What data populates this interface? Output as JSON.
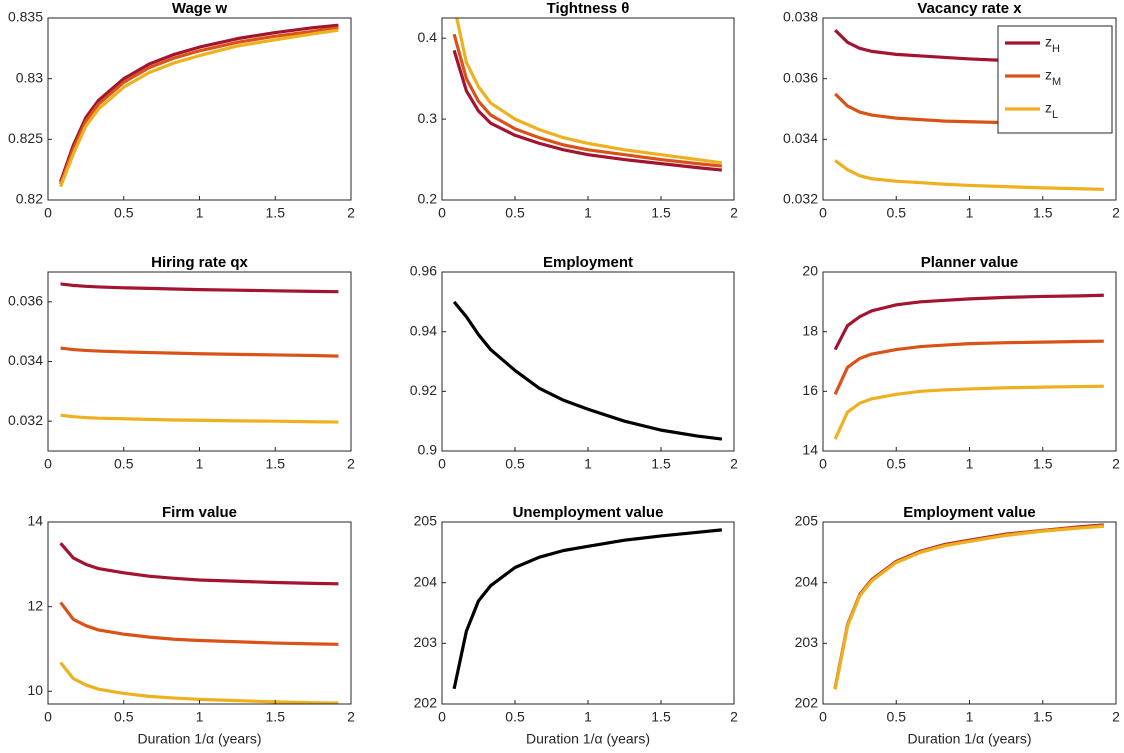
{
  "chart_data": [
    {
      "type": "line",
      "title": "Wage w",
      "x": [
        0.083,
        0.167,
        0.25,
        0.333,
        0.5,
        0.667,
        0.833,
        1,
        1.25,
        1.5,
        1.75,
        1.917
      ],
      "xlim": [
        0,
        2
      ],
      "xticks": [
        0,
        0.5,
        1,
        1.5,
        2
      ],
      "ylim": [
        0.82,
        0.835
      ],
      "yticks": [
        0.82,
        0.825,
        0.83,
        0.835
      ],
      "series": [
        {
          "name": "zH",
          "color": "#a2142f",
          "values": [
            0.8215,
            0.8245,
            0.8268,
            0.8282,
            0.83,
            0.8312,
            0.832,
            0.8326,
            0.8333,
            0.8338,
            0.8342,
            0.8344
          ]
        },
        {
          "name": "zM",
          "color": "#d95319",
          "values": [
            0.8213,
            0.8242,
            0.8265,
            0.8279,
            0.8297,
            0.8309,
            0.8317,
            0.8323,
            0.833,
            0.8335,
            0.8339,
            0.8342
          ]
        },
        {
          "name": "zL",
          "color": "#edb120",
          "values": [
            0.8211,
            0.8238,
            0.8261,
            0.8275,
            0.8293,
            0.8305,
            0.8313,
            0.8319,
            0.8327,
            0.8332,
            0.8337,
            0.834
          ]
        }
      ]
    },
    {
      "type": "line",
      "title": "Tightness θ",
      "x": [
        0.083,
        0.167,
        0.25,
        0.333,
        0.5,
        0.667,
        0.833,
        1,
        1.25,
        1.5,
        1.75,
        1.917
      ],
      "xlim": [
        0,
        2
      ],
      "xticks": [
        0,
        0.5,
        1,
        1.5,
        2
      ],
      "ylim": [
        0.2,
        0.425
      ],
      "yticks": [
        0.2,
        0.3,
        0.4
      ],
      "series": [
        {
          "name": "zH",
          "color": "#a2142f",
          "values": [
            0.385,
            0.335,
            0.31,
            0.295,
            0.28,
            0.27,
            0.262,
            0.256,
            0.25,
            0.245,
            0.24,
            0.237
          ]
        },
        {
          "name": "zM",
          "color": "#d95319",
          "values": [
            0.405,
            0.35,
            0.322,
            0.305,
            0.288,
            0.277,
            0.268,
            0.262,
            0.256,
            0.25,
            0.245,
            0.242
          ]
        },
        {
          "name": "zL",
          "color": "#edb120",
          "values": [
            0.44,
            0.37,
            0.34,
            0.32,
            0.3,
            0.287,
            0.277,
            0.27,
            0.262,
            0.256,
            0.25,
            0.246
          ]
        }
      ]
    },
    {
      "type": "line",
      "title": "Vacancy rate x",
      "x": [
        0.083,
        0.167,
        0.25,
        0.333,
        0.5,
        0.667,
        0.833,
        1,
        1.25,
        1.5,
        1.75,
        1.917
      ],
      "xlim": [
        0,
        2
      ],
      "xticks": [
        0,
        0.5,
        1,
        1.5,
        2
      ],
      "ylim": [
        0.032,
        0.038
      ],
      "yticks": [
        0.032,
        0.034,
        0.036,
        0.038
      ],
      "legend": "northeast",
      "series": [
        {
          "name": "zH",
          "color": "#a2142f",
          "values": [
            0.0376,
            0.0372,
            0.037,
            0.0369,
            0.0368,
            0.03675,
            0.0367,
            0.03665,
            0.0366,
            0.03657,
            0.03655,
            0.03653
          ]
        },
        {
          "name": "zM",
          "color": "#d95319",
          "values": [
            0.0355,
            0.0351,
            0.0349,
            0.0348,
            0.0347,
            0.03465,
            0.0346,
            0.03458,
            0.03455,
            0.0345,
            0.03448,
            0.03446
          ]
        },
        {
          "name": "zL",
          "color": "#edb120",
          "values": [
            0.0333,
            0.033,
            0.0328,
            0.0327,
            0.03262,
            0.03257,
            0.03252,
            0.03248,
            0.03244,
            0.0324,
            0.03237,
            0.03235
          ]
        }
      ]
    },
    {
      "type": "line",
      "title": "Hiring rate qx",
      "x": [
        0.083,
        0.167,
        0.25,
        0.333,
        0.5,
        0.667,
        0.833,
        1,
        1.25,
        1.5,
        1.75,
        1.917
      ],
      "xlim": [
        0,
        2
      ],
      "xticks": [
        0,
        0.5,
        1,
        1.5,
        2
      ],
      "ylim": [
        0.031,
        0.037
      ],
      "yticks": [
        0.032,
        0.034,
        0.036
      ],
      "series": [
        {
          "name": "zH",
          "color": "#a2142f",
          "values": [
            0.0366,
            0.03655,
            0.03652,
            0.0365,
            0.03647,
            0.03645,
            0.03643,
            0.03641,
            0.03639,
            0.03637,
            0.03635,
            0.03634
          ]
        },
        {
          "name": "zM",
          "color": "#d95319",
          "values": [
            0.03445,
            0.0344,
            0.03437,
            0.03435,
            0.03432,
            0.0343,
            0.03428,
            0.03426,
            0.03424,
            0.03422,
            0.0342,
            0.03418
          ]
        },
        {
          "name": "zL",
          "color": "#edb120",
          "values": [
            0.0322,
            0.03215,
            0.03212,
            0.0321,
            0.03208,
            0.03206,
            0.03204,
            0.03203,
            0.03201,
            0.032,
            0.03198,
            0.03197
          ]
        }
      ]
    },
    {
      "type": "line",
      "title": "Employment",
      "x": [
        0.083,
        0.167,
        0.25,
        0.333,
        0.5,
        0.667,
        0.833,
        1,
        1.25,
        1.5,
        1.75,
        1.917
      ],
      "xlim": [
        0,
        2
      ],
      "xticks": [
        0,
        0.5,
        1,
        1.5,
        2
      ],
      "ylim": [
        0.9,
        0.96
      ],
      "yticks": [
        0.9,
        0.92,
        0.94,
        0.96
      ],
      "series": [
        {
          "color": "#000000",
          "values": [
            0.95,
            0.945,
            0.939,
            0.934,
            0.927,
            0.921,
            0.917,
            0.914,
            0.91,
            0.907,
            0.905,
            0.904
          ]
        }
      ]
    },
    {
      "type": "line",
      "title": "Planner value",
      "x": [
        0.083,
        0.167,
        0.25,
        0.333,
        0.5,
        0.667,
        0.833,
        1,
        1.25,
        1.5,
        1.75,
        1.917
      ],
      "xlim": [
        0,
        2
      ],
      "xticks": [
        0,
        0.5,
        1,
        1.5,
        2
      ],
      "ylim": [
        14,
        20
      ],
      "yticks": [
        14,
        16,
        18,
        20
      ],
      "series": [
        {
          "name": "zH",
          "color": "#a2142f",
          "values": [
            17.4,
            18.2,
            18.5,
            18.7,
            18.9,
            19,
            19.05,
            19.1,
            19.15,
            19.18,
            19.2,
            19.22
          ]
        },
        {
          "name": "zM",
          "color": "#d95319",
          "values": [
            15.9,
            16.8,
            17.1,
            17.25,
            17.4,
            17.5,
            17.55,
            17.6,
            17.63,
            17.65,
            17.67,
            17.68
          ]
        },
        {
          "name": "zL",
          "color": "#edb120",
          "values": [
            14.4,
            15.3,
            15.6,
            15.75,
            15.9,
            16,
            16.05,
            16.08,
            16.12,
            16.14,
            16.16,
            16.17
          ]
        }
      ]
    },
    {
      "type": "line",
      "title": "Firm value",
      "xlabel": "Duration 1/α (years)",
      "x": [
        0.083,
        0.167,
        0.25,
        0.333,
        0.5,
        0.667,
        0.833,
        1,
        1.25,
        1.5,
        1.75,
        1.917
      ],
      "xlim": [
        0,
        2
      ],
      "xticks": [
        0,
        0.5,
        1,
        1.5,
        2
      ],
      "ylim": [
        9.7,
        14
      ],
      "yticks": [
        10,
        12,
        14
      ],
      "series": [
        {
          "name": "zH",
          "color": "#a2142f",
          "values": [
            13.5,
            13.15,
            13,
            12.9,
            12.8,
            12.72,
            12.67,
            12.63,
            12.6,
            12.57,
            12.55,
            12.54
          ]
        },
        {
          "name": "zM",
          "color": "#d95319",
          "values": [
            12.1,
            11.7,
            11.55,
            11.45,
            11.35,
            11.28,
            11.23,
            11.2,
            11.17,
            11.14,
            11.12,
            11.11
          ]
        },
        {
          "name": "zL",
          "color": "#edb120",
          "values": [
            10.68,
            10.3,
            10.15,
            10.05,
            9.95,
            9.88,
            9.84,
            9.81,
            9.78,
            9.75,
            9.73,
            9.72
          ]
        }
      ]
    },
    {
      "type": "line",
      "title": "Unemployment value",
      "xlabel": "Duration 1/α (years)",
      "x": [
        0.083,
        0.167,
        0.25,
        0.333,
        0.5,
        0.667,
        0.833,
        1,
        1.25,
        1.5,
        1.75,
        1.917
      ],
      "xlim": [
        0,
        2
      ],
      "xticks": [
        0,
        0.5,
        1,
        1.5,
        2
      ],
      "ylim": [
        202,
        205
      ],
      "yticks": [
        202,
        203,
        204,
        205
      ],
      "series": [
        {
          "color": "#000000",
          "values": [
            202.25,
            203.2,
            203.7,
            203.95,
            204.25,
            204.42,
            204.53,
            204.6,
            204.7,
            204.77,
            204.83,
            204.87
          ]
        }
      ]
    },
    {
      "type": "line",
      "title": "Employment value",
      "xlabel": "Duration 1/α (years)",
      "x": [
        0.083,
        0.167,
        0.25,
        0.333,
        0.5,
        0.667,
        0.833,
        1,
        1.25,
        1.5,
        1.75,
        1.917
      ],
      "xlim": [
        0,
        2
      ],
      "xticks": [
        0,
        0.5,
        1,
        1.5,
        2
      ],
      "ylim": [
        202,
        205
      ],
      "yticks": [
        202,
        203,
        204,
        205
      ],
      "series": [
        {
          "name": "zH",
          "color": "#a2142f",
          "values": [
            202.26,
            203.3,
            203.8,
            204.05,
            204.35,
            204.52,
            204.63,
            204.7,
            204.8,
            204.86,
            204.92,
            204.95
          ]
        },
        {
          "name": "zM",
          "color": "#d95319",
          "values": [
            202.25,
            203.29,
            203.79,
            204.04,
            204.34,
            204.51,
            204.62,
            204.69,
            204.79,
            204.86,
            204.91,
            204.94
          ]
        },
        {
          "name": "zL",
          "color": "#edb120",
          "values": [
            202.24,
            203.28,
            203.78,
            204.03,
            204.33,
            204.5,
            204.61,
            204.68,
            204.78,
            204.85,
            204.9,
            204.93
          ]
        }
      ]
    }
  ]
}
